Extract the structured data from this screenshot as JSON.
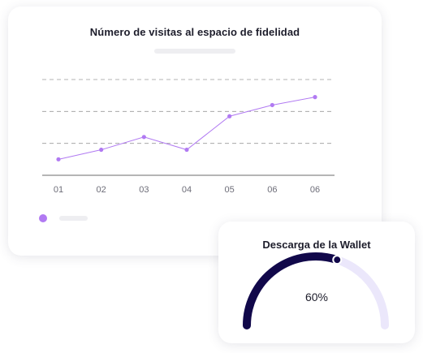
{
  "visits_card": {
    "title": "Número de visitas al espacio de fidelidad"
  },
  "wallet_card": {
    "title": "Descarga de la Wallet",
    "value_label": "60%"
  },
  "colors": {
    "line": "#b17af2",
    "gridline": "#9a9a9a",
    "axis": "#b5b5b5",
    "gauge_fill": "#11084a",
    "gauge_track": "#ebe7fb",
    "legend_dot": "#b17af2"
  },
  "chart_data": [
    {
      "type": "line",
      "title": "Número de visitas al espacio de fidelidad",
      "categories": [
        "01",
        "02",
        "03",
        "04",
        "05",
        "06",
        "06"
      ],
      "series": [
        {
          "values": [
            1.0,
            1.6,
            2.4,
            1.6,
            3.7,
            4.4,
            4.9
          ]
        }
      ],
      "ylim": [
        0,
        6
      ],
      "grid": true,
      "gridlines_at": [
        2,
        4,
        6
      ],
      "xlabel": "",
      "ylabel": ""
    },
    {
      "type": "gauge",
      "title": "Descarga de la Wallet",
      "value": 60,
      "max": 100,
      "label": "60%"
    }
  ]
}
